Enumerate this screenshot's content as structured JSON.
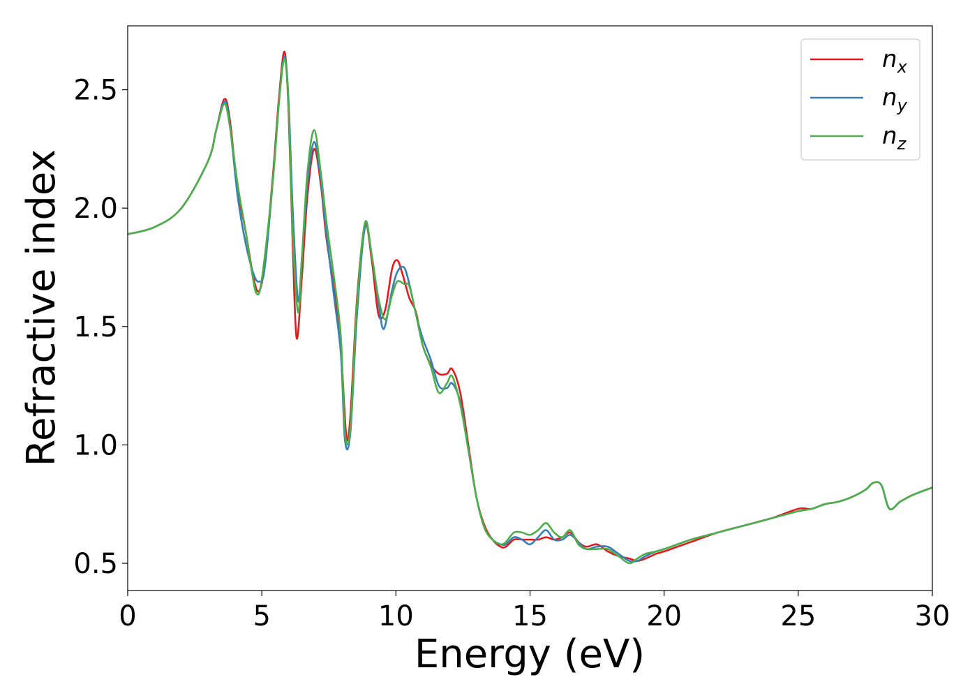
{
  "chart_data": {
    "type": "line",
    "title": "",
    "xlabel": "Energy (eV)",
    "ylabel": "Refractive index",
    "xlim": [
      0,
      30
    ],
    "ylim": [
      0.385,
      2.77
    ],
    "xticks": [
      0,
      5,
      10,
      15,
      20,
      25,
      30
    ],
    "xtick_labels": [
      "0",
      "5",
      "10",
      "15",
      "20",
      "25",
      "30"
    ],
    "yticks": [
      0.5,
      1.0,
      1.5,
      2.0,
      2.5
    ],
    "ytick_labels": [
      "0.5",
      "1.0",
      "1.5",
      "2.0",
      "2.5"
    ],
    "grid": false,
    "legend_position": "top-right",
    "series": [
      {
        "name": "n_x",
        "label_base": "n",
        "label_sub": "x",
        "color": "#e41a1c",
        "x": [
          0,
          1,
          2,
          3,
          3.3,
          3.6,
          3.8,
          4.1,
          4.4,
          4.7,
          4.9,
          5.1,
          5.4,
          5.65,
          5.85,
          6.0,
          6.15,
          6.3,
          6.5,
          6.7,
          6.95,
          7.2,
          7.4,
          7.7,
          7.95,
          8.15,
          8.3,
          8.55,
          8.85,
          9.1,
          9.35,
          9.6,
          9.85,
          10.05,
          10.25,
          10.5,
          10.75,
          11.0,
          11.3,
          11.6,
          11.9,
          12.1,
          12.4,
          12.7,
          13.0,
          13.3,
          13.6,
          13.9,
          14.1,
          14.4,
          14.7,
          15.0,
          15.3,
          15.6,
          15.9,
          16.2,
          16.5,
          16.8,
          17.1,
          17.5,
          17.9,
          18.3,
          18.7,
          19.0,
          19.3,
          19.7,
          20.0,
          20.5,
          21.0,
          22.0,
          23.0,
          24.0,
          25.0,
          25.5,
          26.0,
          26.5,
          27.0,
          27.5,
          27.8,
          28.1,
          28.4,
          28.8,
          29.3,
          30.0
        ],
        "y": [
          1.89,
          1.92,
          2.0,
          2.2,
          2.33,
          2.46,
          2.38,
          2.08,
          1.9,
          1.7,
          1.65,
          1.76,
          2.12,
          2.48,
          2.66,
          2.4,
          1.85,
          1.45,
          1.72,
          2.05,
          2.25,
          2.1,
          1.88,
          1.65,
          1.4,
          1.04,
          1.12,
          1.62,
          1.93,
          1.78,
          1.55,
          1.57,
          1.74,
          1.78,
          1.72,
          1.62,
          1.56,
          1.42,
          1.34,
          1.3,
          1.3,
          1.32,
          1.22,
          1.0,
          0.78,
          0.66,
          0.6,
          0.57,
          0.57,
          0.6,
          0.6,
          0.6,
          0.6,
          0.61,
          0.6,
          0.61,
          0.63,
          0.59,
          0.57,
          0.58,
          0.55,
          0.53,
          0.52,
          0.51,
          0.52,
          0.54,
          0.55,
          0.57,
          0.59,
          0.63,
          0.66,
          0.69,
          0.73,
          0.73,
          0.75,
          0.76,
          0.78,
          0.81,
          0.84,
          0.83,
          0.73,
          0.76,
          0.79,
          0.82
        ]
      },
      {
        "name": "n_y",
        "label_base": "n",
        "label_sub": "y",
        "color": "#377eb8",
        "x": [
          0,
          1,
          2,
          3,
          3.3,
          3.6,
          3.8,
          4.1,
          4.4,
          4.7,
          4.9,
          5.1,
          5.4,
          5.65,
          5.85,
          6.0,
          6.15,
          6.35,
          6.5,
          6.7,
          6.95,
          7.2,
          7.4,
          7.7,
          7.95,
          8.1,
          8.3,
          8.55,
          8.85,
          9.1,
          9.35,
          9.55,
          9.85,
          10.05,
          10.3,
          10.5,
          10.75,
          11.0,
          11.3,
          11.6,
          11.9,
          12.1,
          12.4,
          12.7,
          13.0,
          13.3,
          13.6,
          13.9,
          14.1,
          14.4,
          14.7,
          15.0,
          15.3,
          15.6,
          15.9,
          16.2,
          16.5,
          16.8,
          17.1,
          17.5,
          17.9,
          18.3,
          18.7,
          19.0,
          19.3,
          19.7,
          20.0,
          20.5,
          21.0,
          22.0,
          23.0,
          24.0,
          25.0,
          25.5,
          26.0,
          26.5,
          27.0,
          27.5,
          27.8,
          28.1,
          28.4,
          28.8,
          29.3,
          30.0
        ],
        "y": [
          1.89,
          1.92,
          2.0,
          2.2,
          2.33,
          2.45,
          2.36,
          2.05,
          1.85,
          1.72,
          1.69,
          1.74,
          2.1,
          2.46,
          2.64,
          2.45,
          2.0,
          1.61,
          1.8,
          2.1,
          2.28,
          2.12,
          1.9,
          1.62,
          1.38,
          1.02,
          1.05,
          1.55,
          1.92,
          1.8,
          1.6,
          1.49,
          1.65,
          1.73,
          1.75,
          1.68,
          1.55,
          1.45,
          1.36,
          1.25,
          1.24,
          1.26,
          1.18,
          0.98,
          0.78,
          0.65,
          0.6,
          0.58,
          0.58,
          0.61,
          0.6,
          0.58,
          0.61,
          0.64,
          0.6,
          0.6,
          0.62,
          0.59,
          0.56,
          0.57,
          0.57,
          0.54,
          0.51,
          0.51,
          0.53,
          0.55,
          0.56,
          0.58,
          0.6,
          0.63,
          0.66,
          0.69,
          0.72,
          0.73,
          0.75,
          0.76,
          0.78,
          0.81,
          0.84,
          0.83,
          0.73,
          0.76,
          0.79,
          0.82
        ]
      },
      {
        "name": "n_z",
        "label_base": "n",
        "label_sub": "z",
        "color": "#4daf4a",
        "x": [
          0,
          1,
          2,
          3,
          3.3,
          3.6,
          3.8,
          4.1,
          4.4,
          4.6,
          4.8,
          5.0,
          5.4,
          5.65,
          5.85,
          6.0,
          6.15,
          6.35,
          6.5,
          6.7,
          6.95,
          7.2,
          7.4,
          7.7,
          7.95,
          8.1,
          8.3,
          8.55,
          8.85,
          9.1,
          9.35,
          9.6,
          9.85,
          10.05,
          10.3,
          10.5,
          10.75,
          11.0,
          11.3,
          11.6,
          11.9,
          12.1,
          12.4,
          12.7,
          13.0,
          13.3,
          13.6,
          13.9,
          14.1,
          14.4,
          14.7,
          15.0,
          15.3,
          15.6,
          15.9,
          16.2,
          16.5,
          16.8,
          17.1,
          17.5,
          17.9,
          18.3,
          18.7,
          19.0,
          19.3,
          19.7,
          20.0,
          20.5,
          21.0,
          22.0,
          23.0,
          24.0,
          25.0,
          25.5,
          26.0,
          26.5,
          27.0,
          27.5,
          27.8,
          28.1,
          28.4,
          28.8,
          29.3,
          30.0
        ],
        "y": [
          1.89,
          1.92,
          2.0,
          2.2,
          2.33,
          2.44,
          2.35,
          2.1,
          1.9,
          1.75,
          1.64,
          1.7,
          2.1,
          2.46,
          2.63,
          2.42,
          1.9,
          1.56,
          1.8,
          2.15,
          2.33,
          2.15,
          1.95,
          1.7,
          1.45,
          1.05,
          1.07,
          1.6,
          1.94,
          1.8,
          1.62,
          1.53,
          1.63,
          1.69,
          1.68,
          1.67,
          1.55,
          1.42,
          1.33,
          1.22,
          1.26,
          1.29,
          1.17,
          0.98,
          0.78,
          0.65,
          0.6,
          0.58,
          0.59,
          0.63,
          0.63,
          0.62,
          0.64,
          0.67,
          0.63,
          0.61,
          0.64,
          0.58,
          0.56,
          0.56,
          0.56,
          0.53,
          0.5,
          0.52,
          0.54,
          0.55,
          0.56,
          0.58,
          0.6,
          0.63,
          0.66,
          0.69,
          0.72,
          0.73,
          0.75,
          0.76,
          0.78,
          0.81,
          0.84,
          0.83,
          0.73,
          0.76,
          0.79,
          0.82
        ]
      }
    ]
  }
}
